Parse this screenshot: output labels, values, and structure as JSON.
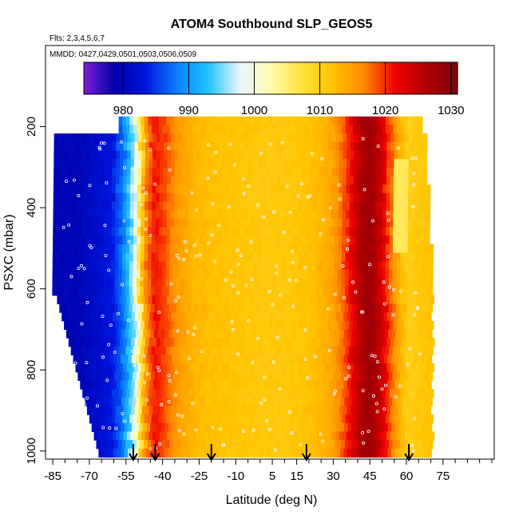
{
  "chart_data": {
    "type": "heatmap",
    "title": "ATOM4 Southbound SLP_GEOS5",
    "flights_label": "Flts: 2,3,4,5,6,7",
    "dates_label": "MMDD: 0427,0429,0501,0503,0506,0509",
    "xlabel": "Latitude (deg N)",
    "ylabel": "PSXC (mbar)",
    "xlim": [
      -88,
      96
    ],
    "ylim": [
      1020,
      0
    ],
    "x_ticks": [
      -85,
      -70,
      -55,
      -40,
      -25,
      -10,
      5,
      15,
      30,
      45,
      60,
      75
    ],
    "y_ticks": [
      200,
      400,
      600,
      800,
      1000
    ],
    "colorbar": {
      "range": [
        974,
        1031
      ],
      "ticks": [
        980,
        990,
        1000,
        1010,
        1020,
        1030
      ],
      "colors": [
        "#7a1fd1",
        "#0000a8",
        "#0016e0",
        "#0a80ff",
        "#22c4ff",
        "#e8f6ff",
        "#fffbb0",
        "#ffe23a",
        "#ffc200",
        "#ff8a00",
        "#f00000",
        "#b00000",
        "#7a0010"
      ]
    },
    "z_profile": {
      "lat": [
        -75,
        -62,
        -57,
        -52,
        -48,
        -44,
        -40,
        -34,
        -28,
        -20,
        -10,
        0,
        10,
        20,
        28,
        32,
        36,
        40,
        44,
        48,
        52,
        56,
        60,
        64,
        70
      ],
      "slp": [
        980,
        983,
        988,
        998,
        1016,
        1021,
        1019,
        1015,
        1013,
        1012,
        1011.5,
        1011,
        1011,
        1012,
        1014,
        1017,
        1021,
        1026,
        1028,
        1025,
        1019,
        1014,
        1010,
        1011,
        1012
      ]
    },
    "arrows_lat": [
      -52,
      -43,
      -20,
      19,
      61
    ]
  }
}
